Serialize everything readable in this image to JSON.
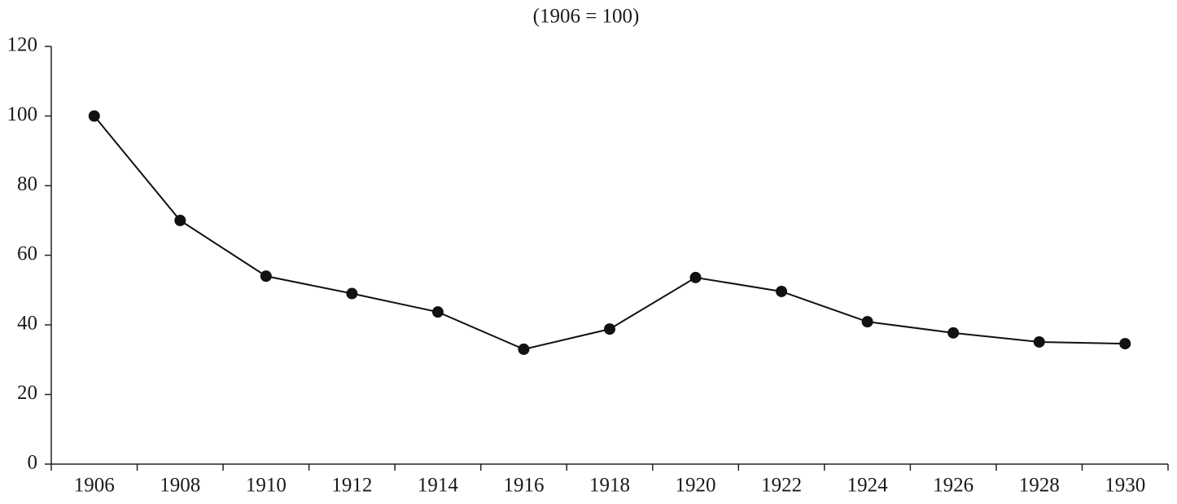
{
  "chart_data": {
    "type": "line",
    "title": "(1906 = 100)",
    "categories": [
      "1906",
      "1908",
      "1910",
      "1912",
      "1914",
      "1916",
      "1918",
      "1920",
      "1922",
      "1924",
      "1926",
      "1928",
      "1930"
    ],
    "values": [
      100,
      70,
      54,
      49,
      43.7,
      33,
      38.8,
      53.6,
      49.6,
      40.9,
      37.7,
      35.1,
      34.6
    ],
    "color": "#111111",
    "ylim": [
      0,
      120
    ],
    "yticks": [
      0,
      20,
      40,
      60,
      80,
      100,
      120
    ],
    "grid": false
  }
}
